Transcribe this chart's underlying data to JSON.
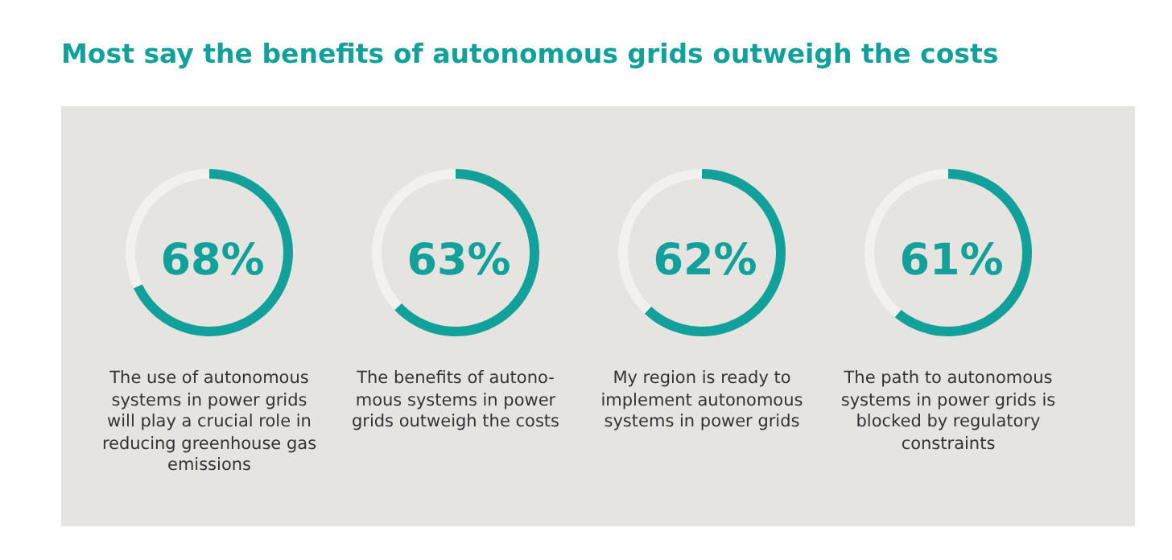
{
  "chart_data": [
    {
      "type": "donut",
      "title": "Most say the benefits of autonomous grids outweigh the costs",
      "categories": [
        null,
        null
      ],
      "values": [
        68,
        32
      ],
      "colors": [
        "#12a19a",
        "#f2f1ee"
      ],
      "value_labels": [
        "68%",
        null
      ],
      "annotations": [
        "The use of autonomous systems in power grids will play a crucial role in reducing greenhouse gas emissions"
      ]
    },
    {
      "type": "donut",
      "categories": [
        null,
        null
      ],
      "values": [
        63,
        37
      ],
      "colors": [
        "#12a19a",
        "#f2f1ee"
      ],
      "value_labels": [
        "63%",
        null
      ],
      "annotations": [
        "The benefits of autono-mous systems in power grids outweigh the costs"
      ]
    },
    {
      "type": "donut",
      "categories": [
        null,
        null
      ],
      "values": [
        62,
        38
      ],
      "colors": [
        "#12a19a",
        "#f2f1ee"
      ],
      "value_labels": [
        "62%",
        null
      ],
      "annotations": [
        "My region is ready to implement autonomous systems in power grids"
      ]
    },
    {
      "type": "donut",
      "categories": [
        null,
        null
      ],
      "values": [
        61,
        39
      ],
      "colors": [
        "#12a19a",
        "#f2f1ee"
      ],
      "value_labels": [
        "61%",
        null
      ],
      "annotations": [
        "The path to autonomous systems in power grids is blocked by regulatory constraints"
      ]
    }
  ]
}
